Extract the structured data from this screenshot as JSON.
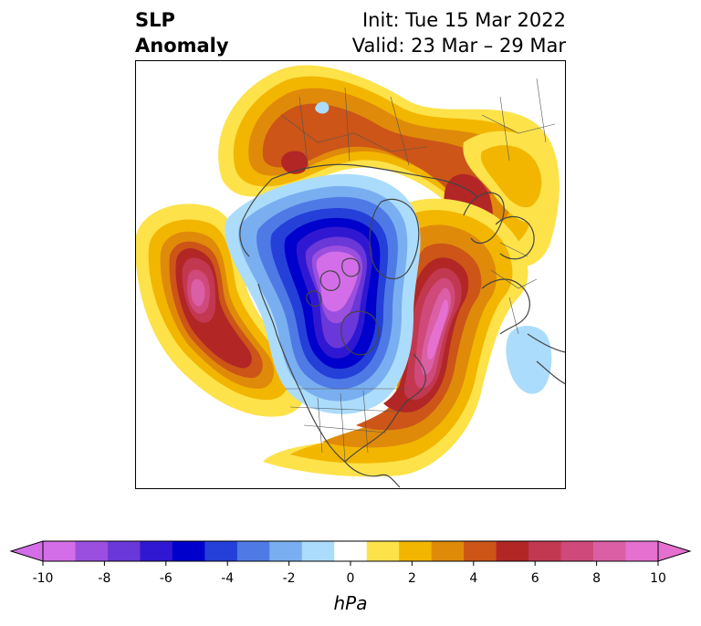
{
  "title": {
    "left_line1": "SLP",
    "left_line2": "Anomaly",
    "right_line1": "Init: Tue 15 Mar 2022",
    "right_line2": "Valid: 23 Mar – 29 Mar"
  },
  "colorbar": {
    "unit": "hPa",
    "levels": [
      -10,
      -9,
      -8,
      -7,
      -6,
      -5,
      -4,
      -3,
      -2,
      -1,
      1,
      2,
      3,
      4,
      5,
      6,
      7,
      8,
      9,
      10
    ],
    "tick_labels": [
      "-10",
      "-8",
      "-6",
      "-4",
      "-2",
      "0",
      "2",
      "4",
      "6",
      "8",
      "10"
    ],
    "colors": [
      "#d36ee8",
      "#9b4fdf",
      "#6a37d8",
      "#3018d2",
      "#0000cc",
      "#2440d8",
      "#4f7ae6",
      "#79aff0",
      "#acdcfb",
      "#ffffff",
      "#fde24a",
      "#f2b600",
      "#e08a0a",
      "#cc5517",
      "#b22626",
      "#c23850",
      "#cf4a7a",
      "#db5fa5",
      "#e570cf"
    ],
    "extend": "both"
  },
  "map": {
    "projection": "north polar stereographic",
    "features": [
      "coastlines",
      "country borders",
      "state/province borders"
    ]
  }
}
